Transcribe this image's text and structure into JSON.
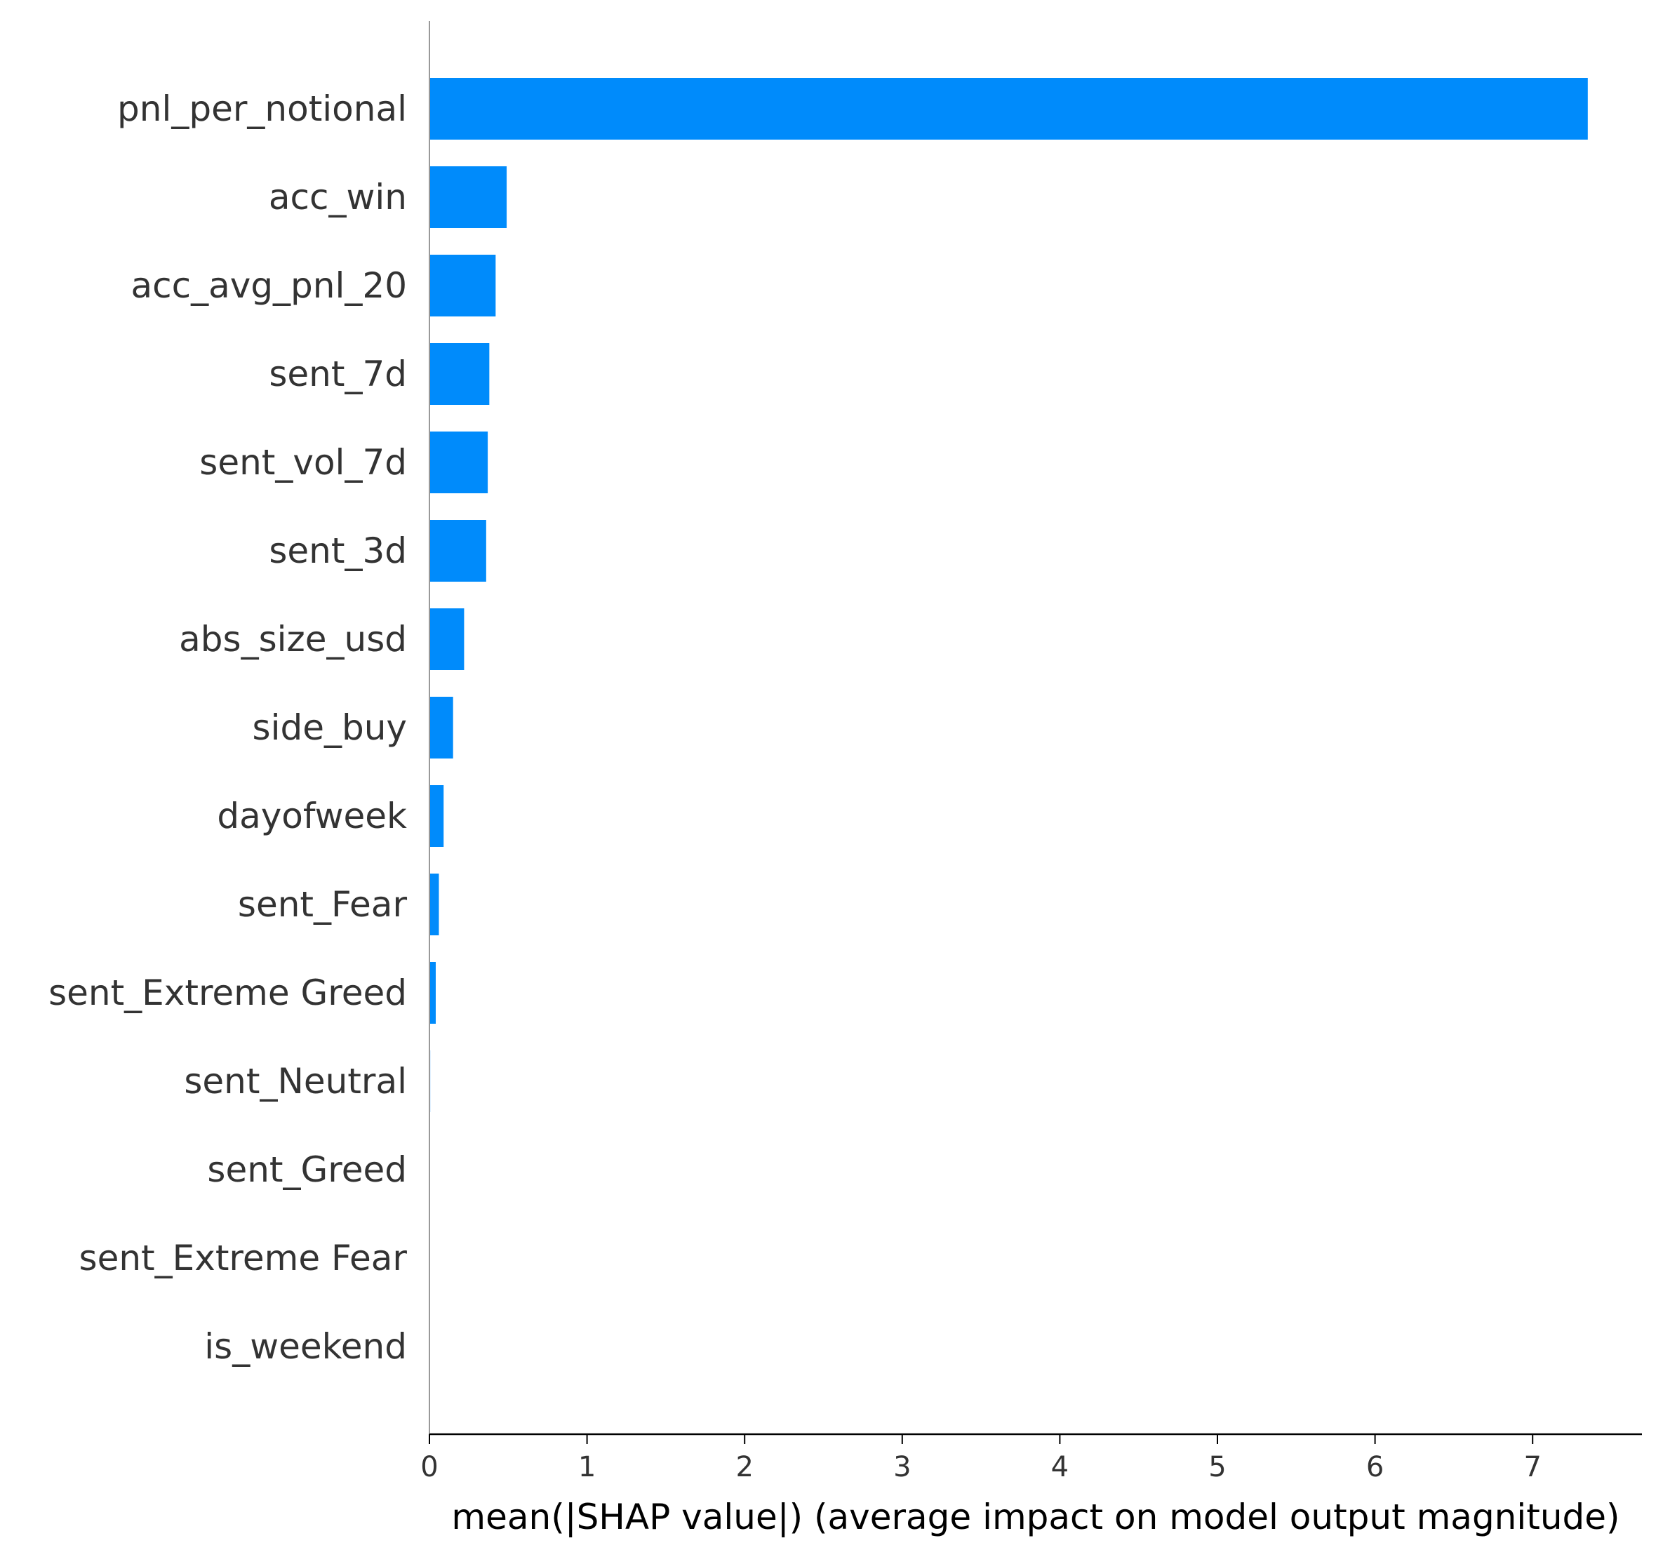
{
  "chart_data": {
    "type": "bar",
    "orientation": "horizontal",
    "categories": [
      "pnl_per_notional",
      "acc_win",
      "acc_avg_pnl_20",
      "sent_7d",
      "sent_vol_7d",
      "sent_3d",
      "abs_size_usd",
      "side_buy",
      "dayofweek",
      "sent_Fear",
      "sent_Extreme Greed",
      "sent_Neutral",
      "sent_Greed",
      "sent_Extreme Fear",
      "is_weekend"
    ],
    "values": [
      7.35,
      0.49,
      0.42,
      0.38,
      0.37,
      0.36,
      0.22,
      0.15,
      0.09,
      0.06,
      0.04,
      0.005,
      0.0,
      0.0,
      0.0
    ],
    "xlabel": "mean(|SHAP value|) (average impact on model output magnitude)",
    "ylabel": "",
    "title": "",
    "xlim": [
      0,
      7.7
    ],
    "xticks": [
      "0",
      "1",
      "2",
      "3",
      "4",
      "5",
      "6",
      "7"
    ],
    "bar_color": "#008bfb",
    "grid": false,
    "legend": "none"
  }
}
